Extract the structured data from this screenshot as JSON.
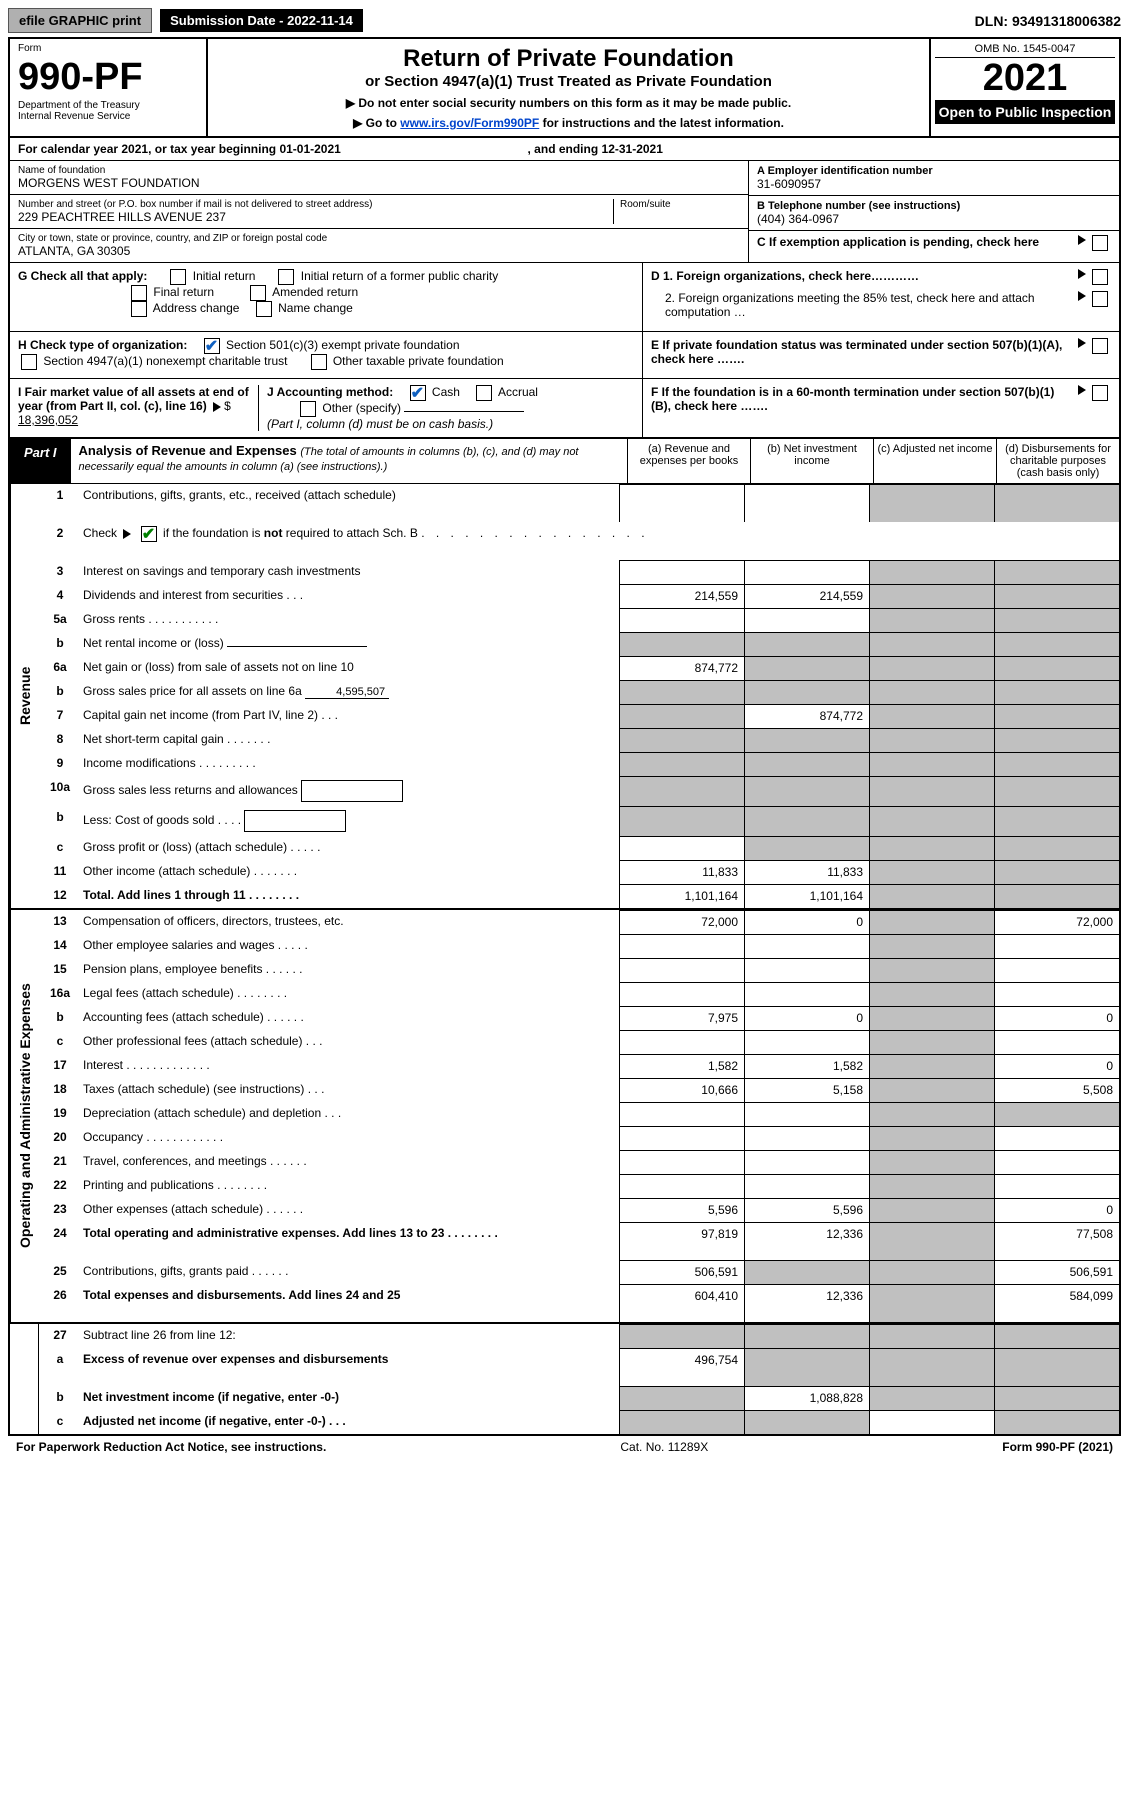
{
  "topbar": {
    "efile": "efile GRAPHIC print",
    "submission": "Submission Date - 2022-11-14",
    "dln": "DLN: 93491318006382"
  },
  "header": {
    "form_label": "Form",
    "form_no": "990-PF",
    "dept": "Department of the Treasury",
    "irs": "Internal Revenue Service",
    "title": "Return of Private Foundation",
    "subtitle": "or Section 4947(a)(1) Trust Treated as Private Foundation",
    "instr1": "▶ Do not enter social security numbers on this form as it may be made public.",
    "instr2_pre": "▶ Go to ",
    "instr2_link": "www.irs.gov/Form990PF",
    "instr2_post": " for instructions and the latest information.",
    "omb": "OMB No. 1545-0047",
    "year": "2021",
    "open": "Open to Public Inspection"
  },
  "calendar": {
    "line": "For calendar year 2021, or tax year beginning 01-01-2021",
    "ending": ", and ending 12-31-2021"
  },
  "foundation": {
    "name_label": "Name of foundation",
    "name": "MORGENS WEST FOUNDATION",
    "addr_label": "Number and street (or P.O. box number if mail is not delivered to street address)",
    "addr": "229 PEACHTREE HILLS AVENUE 237",
    "room_label": "Room/suite",
    "city_label": "City or town, state or province, country, and ZIP or foreign postal code",
    "city": "ATLANTA, GA  30305",
    "ein_label": "A Employer identification number",
    "ein": "31-6090957",
    "phone_label": "B Telephone number (see instructions)",
    "phone": "(404) 364-0967",
    "c_label": "C If exemption application is pending, check here",
    "d1": "D 1. Foreign organizations, check here…………",
    "d2": "2. Foreign organizations meeting the 85% test, check here and attach computation … ",
    "e_label": "E  If private foundation status was terminated under section 507(b)(1)(A), check here …….",
    "f_label": "F  If the foundation is in a 60-month termination under section 507(b)(1)(B), check here …….",
    "g_label": "G Check all that apply:",
    "g_initial": "Initial return",
    "g_initial_former": "Initial return of a former public charity",
    "g_final": "Final return",
    "g_amended": "Amended return",
    "g_address": "Address change",
    "g_name": "Name change",
    "h_label": "H Check type of organization:",
    "h_501c3": "Section 501(c)(3) exempt private foundation",
    "h_4947": "Section 4947(a)(1) nonexempt charitable trust",
    "h_other_tax": "Other taxable private foundation",
    "i_label": "I Fair market value of all assets at end of year (from Part II, col. (c), line 16) ",
    "i_value": "18,396,052",
    "j_label": "J Accounting method:",
    "j_cash": "Cash",
    "j_accrual": "Accrual",
    "j_other": "Other (specify)",
    "j_note": "(Part I, column (d) must be on cash basis.)"
  },
  "part1": {
    "label": "Part I",
    "title": "Analysis of Revenue and Expenses ",
    "title_note": "(The total of amounts in columns (b), (c), and (d) may not necessarily equal the amounts in column (a) (see instructions).)",
    "col_a": "(a)  Revenue and expenses per books",
    "col_b": "(b)  Net investment income",
    "col_c": "(c)  Adjusted net income",
    "col_d": "(d)  Disbursements for charitable purposes (cash basis only)"
  },
  "sections": {
    "revenue": "Revenue",
    "expenses": "Operating and Administrative Expenses"
  },
  "rows": [
    {
      "no": "1",
      "desc": "Contributions, gifts, grants, etc., received (attach schedule)",
      "a": "",
      "b": "",
      "c": "shaded",
      "d": "shaded",
      "tall": true
    },
    {
      "no": "2",
      "desc_html": "Check <span class='triangle'></span> <span class='cb checked'></span> if the foundation is <b>not</b> required to attach Sch. B   <span class='dots'>. . . . . . . . . . . . . . . .</span>",
      "a": "none",
      "b": "none",
      "c": "none",
      "d": "none",
      "tall": true
    },
    {
      "no": "3",
      "desc": "Interest on savings and temporary cash investments",
      "a": "",
      "b": "",
      "c": "shaded",
      "d": "shaded"
    },
    {
      "no": "4",
      "desc": "Dividends and interest from securities    .  .  .",
      "a": "214,559",
      "b": "214,559",
      "c": "shaded",
      "d": "shaded"
    },
    {
      "no": "5a",
      "desc": "Gross rents    .  .  .  .  .  .  .  .  .  .  .",
      "a": "",
      "b": "",
      "c": "shaded",
      "d": "shaded"
    },
    {
      "no": "b",
      "desc": "Net rental income or (loss)  ",
      "inline_box": true,
      "a": "shaded",
      "b": "shaded",
      "c": "shaded",
      "d": "shaded"
    },
    {
      "no": "6a",
      "desc": "Net gain or (loss) from sale of assets not on line 10",
      "a": "874,772",
      "b": "shaded",
      "c": "shaded",
      "d": "shaded"
    },
    {
      "no": "b",
      "desc_html": "Gross sales price for all assets on line 6a <span class='inline-amt'>4,595,507</span>",
      "a": "shaded",
      "b": "shaded",
      "c": "shaded",
      "d": "shaded"
    },
    {
      "no": "7",
      "desc": "Capital gain net income (from Part IV, line 2)    .  .  .",
      "a": "shaded",
      "b": "874,772",
      "c": "shaded",
      "d": "shaded"
    },
    {
      "no": "8",
      "desc": "Net short-term capital gain  .  .  .  .  .  .  .",
      "a": "shaded",
      "b": "shaded",
      "c": "shaded",
      "d": "shaded"
    },
    {
      "no": "9",
      "desc": "Income modifications  .  .  .  .  .  .  .  .  .",
      "a": "shaded",
      "b": "shaded",
      "c": "shaded",
      "d": "shaded"
    },
    {
      "no": "10a",
      "desc": "Gross sales less returns and allowances",
      "short_box": true,
      "a": "shaded",
      "b": "shaded",
      "c": "shaded",
      "d": "shaded"
    },
    {
      "no": "b",
      "desc": "Less: Cost of goods sold     .  .  .  .",
      "short_box": true,
      "a": "shaded",
      "b": "shaded",
      "c": "shaded",
      "d": "shaded"
    },
    {
      "no": "c",
      "desc": "Gross profit or (loss) (attach schedule)     .  .  .  .  .",
      "a": "",
      "b": "shaded",
      "c": "shaded",
      "d": "shaded"
    },
    {
      "no": "11",
      "desc": "Other income (attach schedule)    .  .  .  .  .  .  .",
      "a": "11,833",
      "b": "11,833",
      "c": "shaded",
      "d": "shaded"
    },
    {
      "no": "12",
      "desc": "Total. Add lines 1 through 11    .  .  .  .  .  .  .  .",
      "bold": true,
      "a": "1,101,164",
      "b": "1,101,164",
      "c": "shaded",
      "d": "shaded"
    }
  ],
  "exp_rows": [
    {
      "no": "13",
      "desc": "Compensation of officers, directors, trustees, etc.",
      "a": "72,000",
      "b": "0",
      "c": "shaded",
      "d": "72,000"
    },
    {
      "no": "14",
      "desc": "Other employee salaries and wages    .  .  .  .  .",
      "a": "",
      "b": "",
      "c": "shaded",
      "d": ""
    },
    {
      "no": "15",
      "desc": "Pension plans, employee benefits  .  .  .  .  .  .",
      "a": "",
      "b": "",
      "c": "shaded",
      "d": ""
    },
    {
      "no": "16a",
      "desc": "Legal fees (attach schedule)  .  .  .  .  .  .  .  .",
      "a": "",
      "b": "",
      "c": "shaded",
      "d": ""
    },
    {
      "no": "b",
      "desc": "Accounting fees (attach schedule)  .  .  .  .  .  .",
      "a": "7,975",
      "b": "0",
      "c": "shaded",
      "d": "0"
    },
    {
      "no": "c",
      "desc": "Other professional fees (attach schedule)     .  .  .",
      "a": "",
      "b": "",
      "c": "shaded",
      "d": ""
    },
    {
      "no": "17",
      "desc": "Interest  .  .  .  .  .  .  .  .  .  .  .  .  .",
      "a": "1,582",
      "b": "1,582",
      "c": "shaded",
      "d": "0"
    },
    {
      "no": "18",
      "desc": "Taxes (attach schedule) (see instructions)     .  .  .",
      "a": "10,666",
      "b": "5,158",
      "c": "shaded",
      "d": "5,508"
    },
    {
      "no": "19",
      "desc": "Depreciation (attach schedule) and depletion    .  .  .",
      "a": "",
      "b": "",
      "c": "shaded",
      "d": "shaded"
    },
    {
      "no": "20",
      "desc": "Occupancy  .  .  .  .  .  .  .  .  .  .  .  .",
      "a": "",
      "b": "",
      "c": "shaded",
      "d": ""
    },
    {
      "no": "21",
      "desc": "Travel, conferences, and meetings  .  .  .  .  .  .",
      "a": "",
      "b": "",
      "c": "shaded",
      "d": ""
    },
    {
      "no": "22",
      "desc": "Printing and publications  .  .  .  .  .  .  .  .",
      "a": "",
      "b": "",
      "c": "shaded",
      "d": ""
    },
    {
      "no": "23",
      "desc": "Other expenses (attach schedule)  .  .  .  .  .  .",
      "a": "5,596",
      "b": "5,596",
      "c": "shaded",
      "d": "0"
    },
    {
      "no": "24",
      "desc": "Total operating and administrative expenses. Add lines 13 to 23   .  .  .  .  .  .  .  .",
      "bold": true,
      "a": "97,819",
      "b": "12,336",
      "c": "shaded",
      "d": "77,508",
      "tall": true
    },
    {
      "no": "25",
      "desc": "Contributions, gifts, grants paid     .  .  .  .  .  .",
      "a": "506,591",
      "b": "shaded",
      "c": "shaded",
      "d": "506,591"
    },
    {
      "no": "26",
      "desc": "Total expenses and disbursements. Add lines 24 and 25",
      "bold": true,
      "a": "604,410",
      "b": "12,336",
      "c": "shaded",
      "d": "584,099",
      "tall": true
    }
  ],
  "final_rows": [
    {
      "no": "27",
      "desc": "Subtract line 26 from line 12:",
      "a": "shaded",
      "b": "shaded",
      "c": "shaded",
      "d": "shaded"
    },
    {
      "no": "a",
      "desc": "Excess of revenue over expenses and disbursements",
      "bold": true,
      "a": "496,754",
      "b": "shaded",
      "c": "shaded",
      "d": "shaded",
      "tall": true
    },
    {
      "no": "b",
      "desc": "Net investment income (if negative, enter -0-)",
      "bold": true,
      "a": "shaded",
      "b": "1,088,828",
      "c": "shaded",
      "d": "shaded"
    },
    {
      "no": "c",
      "desc": "Adjusted net income (if negative, enter -0-)    .  .  .",
      "bold": true,
      "a": "shaded",
      "b": "shaded",
      "c": "",
      "d": "shaded"
    }
  ],
  "footer": {
    "left": "For Paperwork Reduction Act Notice, see instructions.",
    "center": "Cat. No. 11289X",
    "right": "Form 990-PF (2021)"
  }
}
